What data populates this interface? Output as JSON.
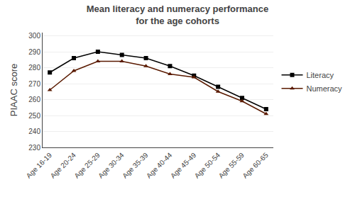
{
  "chart_data": {
    "type": "line",
    "title": "Mean literacy and numeracy performance\nfor the age cohorts",
    "ylabel": "PIAAC score",
    "categories": [
      "Age 16-19",
      "Age 20-24",
      "Age 25-29",
      "Age 30-34",
      "Age 35-39",
      "Age 40-44",
      "Age 45-49",
      "Age 50-54",
      "Age 55-59",
      "Age 60-65"
    ],
    "series": [
      {
        "name": "Literacy",
        "color": "#000000",
        "marker": "square",
        "values": [
          277,
          286,
          290,
          288,
          286,
          281,
          275,
          268,
          261,
          254
        ]
      },
      {
        "name": "Numeracy",
        "color": "#5a1a00",
        "marker": "triangle",
        "values": [
          266,
          278,
          284,
          284,
          281,
          276,
          274,
          265,
          259,
          251
        ]
      }
    ],
    "ylim": [
      230,
      302
    ],
    "yticks": [
      230,
      240,
      250,
      260,
      270,
      280,
      290,
      300
    ],
    "grid": true,
    "legend": "right"
  }
}
